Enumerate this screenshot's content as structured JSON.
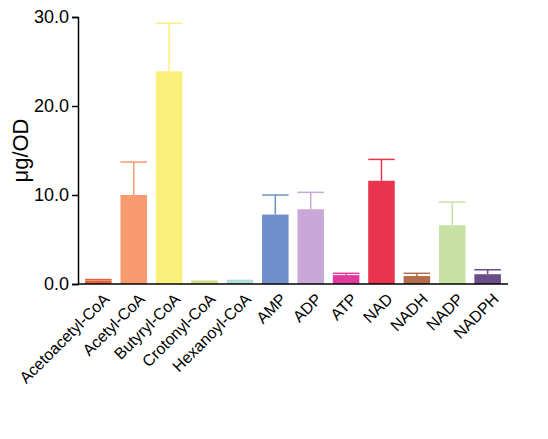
{
  "chart_data": {
    "type": "bar",
    "y_label": "μg/OD",
    "categories": [
      "Acetoacetyl-CoA",
      "Acetyl-CoA",
      "Butyryl-CoA",
      "Crotonyl-CoA",
      "Hexanoyl-CoA",
      "AMP",
      "ADP",
      "ATP",
      "NAD",
      "NADH",
      "NADP",
      "NADPH"
    ],
    "values": [
      0.4,
      10.0,
      23.9,
      0.2,
      0.3,
      7.8,
      8.4,
      1.0,
      11.6,
      0.9,
      6.6,
      1.1
    ],
    "errors": [
      0.1,
      3.7,
      5.4,
      0.1,
      0.1,
      2.2,
      1.9,
      0.2,
      2.4,
      0.3,
      2.6,
      0.5
    ],
    "colors": [
      "#e2643f",
      "#f89a70",
      "#fcf07c",
      "#c9dc7c",
      "#a9dcd6",
      "#6f8fca",
      "#c9a8d8",
      "#e03a9c",
      "#e8344f",
      "#b06e4a",
      "#c7e2a4",
      "#6a4d89"
    ],
    "ylim": [
      0,
      30
    ],
    "yticks": [
      {
        "value": 0,
        "label": "0.0"
      },
      {
        "value": 10,
        "label": "10.0"
      },
      {
        "value": 20,
        "label": "20.0"
      },
      {
        "value": 30,
        "label": "30.0"
      }
    ]
  }
}
